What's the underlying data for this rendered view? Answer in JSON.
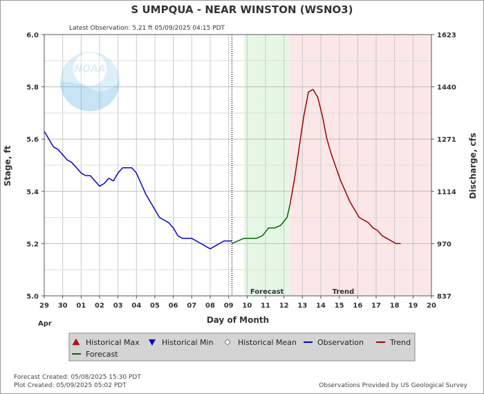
{
  "chart_data": {
    "type": "line",
    "title": "S UMPQUA - NEAR WINSTON  (WSNO3)",
    "latest_observation": "Latest Observation: 5.21 ft 05/09/2025 04:15 PDT",
    "xlabel": "Day of Month",
    "ylabel_left": "Stage, ft",
    "ylabel_right": "Discharge, cfs",
    "month_label": "Apr",
    "x_ticks": [
      "29",
      "30",
      "01",
      "02",
      "03",
      "04",
      "05",
      "06",
      "07",
      "08",
      "09",
      "10",
      "11",
      "12",
      "13",
      "14",
      "15",
      "16",
      "17",
      "18",
      "19",
      "20"
    ],
    "x_range_days_from_apr29": [
      0,
      21
    ],
    "ylim": [
      5.0,
      6.0
    ],
    "y_ticks_left": [
      "5.0",
      "5.2",
      "5.4",
      "5.6",
      "5.8",
      "6.0"
    ],
    "y_ticks_right": [
      {
        "label": "837",
        "stage": 5.0
      },
      {
        "label": "970",
        "stage": 5.2
      },
      {
        "label": "1114",
        "stage": 5.4
      },
      {
        "label": "1271",
        "stage": 5.6
      },
      {
        "label": "1440",
        "stage": 5.8
      },
      {
        "label": "1623",
        "stage": 6.0
      }
    ],
    "regions": [
      {
        "name": "Forecast",
        "start": 10.83,
        "end": 13.33,
        "color": "#e6f7e6"
      },
      {
        "name": "Trend",
        "start": 13.33,
        "end": 21.0,
        "color": "#fbe7e7"
      }
    ],
    "now_marker": 10.18,
    "series": [
      {
        "name": "Observation",
        "color": "#0000cc",
        "x": [
          0.0,
          0.25,
          0.5,
          0.75,
          1.0,
          1.25,
          1.5,
          1.75,
          2.0,
          2.25,
          2.5,
          2.75,
          3.0,
          3.25,
          3.5,
          3.75,
          4.0,
          4.25,
          4.5,
          4.75,
          5.0,
          5.25,
          5.5,
          5.75,
          6.0,
          6.25,
          6.5,
          6.75,
          7.0,
          7.25,
          7.5,
          7.75,
          8.0,
          8.25,
          8.5,
          8.75,
          9.0,
          9.25,
          9.5,
          9.75,
          10.0,
          10.18
        ],
        "y": [
          5.63,
          5.6,
          5.57,
          5.56,
          5.54,
          5.52,
          5.51,
          5.49,
          5.47,
          5.46,
          5.46,
          5.44,
          5.42,
          5.43,
          5.45,
          5.44,
          5.47,
          5.49,
          5.49,
          5.49,
          5.47,
          5.43,
          5.39,
          5.36,
          5.33,
          5.3,
          5.29,
          5.28,
          5.26,
          5.23,
          5.22,
          5.22,
          5.22,
          5.21,
          5.2,
          5.19,
          5.18,
          5.19,
          5.2,
          5.21,
          5.21,
          5.21
        ]
      },
      {
        "name": "Forecast",
        "color": "#006600",
        "x": [
          10.18,
          10.5,
          10.83,
          11.17,
          11.5,
          11.83,
          12.17,
          12.5,
          12.83,
          13.17,
          13.33
        ],
        "y": [
          5.2,
          5.21,
          5.22,
          5.22,
          5.22,
          5.23,
          5.26,
          5.26,
          5.27,
          5.3,
          5.35
        ]
      },
      {
        "name": "Trend",
        "color": "#990000",
        "x": [
          13.33,
          13.58,
          13.83,
          14.08,
          14.33,
          14.58,
          14.83,
          15.08,
          15.33,
          15.58,
          15.83,
          16.08,
          16.33,
          16.58,
          16.83,
          17.08,
          17.33,
          17.58,
          17.83,
          18.08,
          18.33,
          18.58,
          18.83,
          19.08,
          19.33
        ],
        "y": [
          5.35,
          5.45,
          5.57,
          5.69,
          5.78,
          5.79,
          5.76,
          5.69,
          5.6,
          5.54,
          5.49,
          5.44,
          5.4,
          5.36,
          5.33,
          5.3,
          5.29,
          5.28,
          5.26,
          5.25,
          5.23,
          5.22,
          5.21,
          5.2,
          5.2
        ]
      }
    ],
    "legend": [
      {
        "label": "Historical Max",
        "marker": "triangle-up",
        "color": "#cc0000"
      },
      {
        "label": "Historical Min",
        "marker": "triangle-down",
        "color": "#0000cc"
      },
      {
        "label": "Historical Mean",
        "marker": "diamond",
        "color": "#999999"
      },
      {
        "label": "Observation",
        "marker": "line",
        "color": "#0000cc"
      },
      {
        "label": "Trend",
        "marker": "line",
        "color": "#990000"
      },
      {
        "label": "Forecast",
        "marker": "line",
        "color": "#006600"
      }
    ],
    "forecast_created": "Forecast Created: 05/08/2025 15:30 PDT",
    "plot_created": "Plot Created: 05/09/2025 05:02 PDT",
    "provided_by": "Observations Provided by US Geological Survey",
    "logo_text": "NOAA",
    "grid": true
  }
}
